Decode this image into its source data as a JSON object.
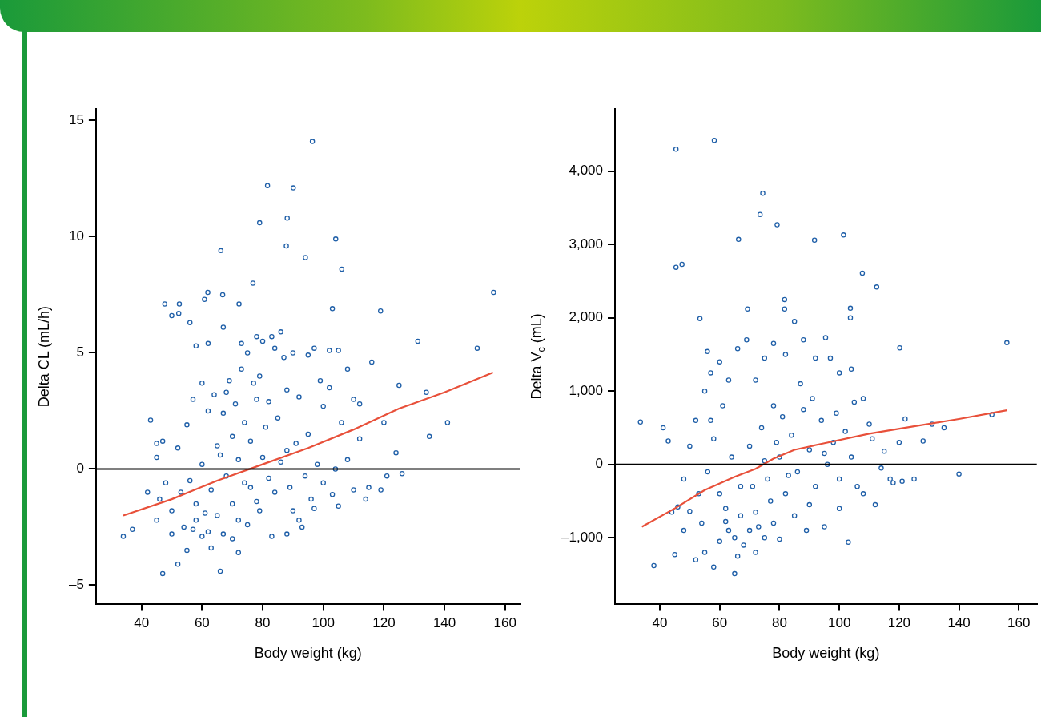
{
  "chart_data": [
    {
      "type": "scatter",
      "xlabel": "Body weight (kg)",
      "ylabel": "Delta CL (mL/h)",
      "xlim": [
        25,
        165
      ],
      "xticks": [
        40,
        60,
        80,
        100,
        120,
        140,
        160
      ],
      "ylim": [
        -5.8,
        15.5
      ],
      "yticks": [
        {
          "value": -5,
          "label": "–5"
        },
        0,
        5,
        10,
        15
      ],
      "legend": false,
      "grid": false,
      "ref_lines": [
        {
          "axis": "y",
          "value": 0,
          "color": "#000000"
        }
      ],
      "series": [
        {
          "marker": "circle",
          "color": "#1f5fa8",
          "x": [
            96.4,
            81.6,
            90.1,
            88.1,
            79,
            87.8,
            66.2,
            94.1,
            104.1,
            106.1,
            76.8,
            156.2,
            47.7,
            61.9,
            66.8,
            72.2,
            103,
            118.9,
            131.2,
            150.8,
            52.5,
            60.8,
            52.3,
            120,
            125,
            134,
            135,
            141,
            124,
            126,
            121,
            119,
            115,
            114,
            110,
            103,
            105,
            112,
            116,
            108,
            102,
            105,
            95,
            97,
            90,
            87,
            86,
            83,
            84,
            78,
            80,
            75,
            73,
            67,
            62,
            58,
            56,
            50,
            34,
            37,
            43,
            45,
            47,
            46,
            45,
            47,
            50,
            52,
            55,
            57,
            60,
            62,
            63,
            66,
            67,
            70,
            72,
            75,
            78,
            83,
            88,
            93,
            96,
            100,
            52,
            55,
            57,
            60,
            62,
            65,
            68,
            70,
            72,
            74,
            76,
            78,
            80,
            82,
            85,
            88,
            90,
            92,
            95,
            98,
            100,
            102,
            106,
            108,
            110,
            112,
            56,
            58,
            60,
            63,
            65,
            66,
            68,
            70,
            72,
            74,
            76,
            79,
            81,
            84,
            86,
            89,
            91,
            94,
            97,
            48,
            50,
            53,
            54,
            58,
            61,
            64,
            67,
            69,
            71,
            73,
            77,
            79,
            82,
            88,
            92,
            99,
            104,
            45,
            42
          ],
          "values": [
            14.1,
            12.2,
            12.1,
            10.8,
            10.6,
            9.6,
            9.4,
            9.1,
            9.9,
            8.6,
            8.0,
            7.6,
            7.1,
            7.6,
            7.5,
            7.1,
            6.9,
            6.8,
            5.5,
            5.2,
            7.1,
            7.3,
            6.7,
            2.0,
            3.6,
            3.3,
            1.4,
            2.0,
            0.7,
            -0.2,
            -0.3,
            -0.9,
            -0.8,
            -1.3,
            -0.9,
            -1.1,
            -1.6,
            2.8,
            4.6,
            4.3,
            5.1,
            5.1,
            4.9,
            5.2,
            5.0,
            4.8,
            5.9,
            5.7,
            5.2,
            5.7,
            5.5,
            5.0,
            5.4,
            6.1,
            5.4,
            5.3,
            6.3,
            6.6,
            -2.9,
            -2.6,
            2.1,
            1.1,
            1.2,
            -1.3,
            -2.2,
            -4.5,
            -2.8,
            -4.1,
            -3.5,
            -2.6,
            -2.9,
            -2.7,
            -3.4,
            -4.4,
            -2.8,
            -3.0,
            -3.6,
            -2.4,
            -1.4,
            -2.9,
            -2.8,
            -2.5,
            -1.3,
            -0.6,
            0.9,
            1.9,
            3.0,
            3.7,
            2.5,
            1.0,
            3.3,
            -1.5,
            0.4,
            2.0,
            -0.8,
            3.0,
            0.5,
            -0.4,
            2.2,
            0.8,
            -1.8,
            3.1,
            1.5,
            0.2,
            2.7,
            3.5,
            2.0,
            0.4,
            3.0,
            1.3,
            -0.5,
            -1.5,
            0.2,
            -0.9,
            -2.0,
            0.6,
            -0.3,
            1.4,
            -2.2,
            -0.6,
            1.2,
            -1.8,
            1.8,
            -1.0,
            0.3,
            -0.8,
            1.1,
            -0.3,
            -1.7,
            -0.6,
            -1.8,
            -1.0,
            -2.5,
            -2.2,
            -1.9,
            3.2,
            2.4,
            3.8,
            2.8,
            4.3,
            3.7,
            4.0,
            2.9,
            3.4,
            -2.2,
            3.8,
            0.0,
            0.5,
            -1.0
          ]
        },
        {
          "type": "line",
          "marker": "none",
          "color": "#e8503a",
          "x": [
            34,
            50,
            65,
            80,
            95,
            110,
            125,
            140,
            156
          ],
          "values": [
            -2.0,
            -1.3,
            -0.5,
            0.2,
            0.9,
            1.7,
            2.6,
            3.3,
            4.15
          ]
        }
      ]
    },
    {
      "type": "scatter",
      "xlabel": "Body weight (kg)",
      "ylabel": "Delta V$_{c}$ (mL)",
      "xlim": [
        25,
        166
      ],
      "xticks": [
        40,
        60,
        80,
        100,
        120,
        140,
        160
      ],
      "ylim": [
        -1900,
        4850
      ],
      "yticks": [
        {
          "value": -1000,
          "label": "–1,000"
        },
        0,
        {
          "value": 1000,
          "label": "1,000"
        },
        {
          "value": 2000,
          "label": "2,000"
        },
        {
          "value": 3000,
          "label": "3,000"
        },
        {
          "value": 4000,
          "label": "4,000"
        }
      ],
      "legend": false,
      "grid": false,
      "ref_lines": [
        {
          "axis": "y",
          "value": 0,
          "color": "#000000"
        }
      ],
      "series": [
        {
          "marker": "circle",
          "color": "#1f5fa8",
          "x": [
            45.4,
            58.2,
            74.4,
            73.5,
            79.2,
            66.3,
            101.4,
            91.7,
            112.5,
            107.7,
            45.4,
            47.4,
            103.7,
            103.7,
            53.4,
            69.3,
            81.7,
            81.7,
            156,
            120.2,
            95.4,
            55.9,
            33.5,
            41.1,
            42.8,
            38,
            45,
            48,
            50,
            52,
            55,
            58,
            60,
            62,
            65,
            66,
            68,
            70,
            72,
            75,
            78,
            80,
            85,
            90,
            95,
            100,
            103,
            108,
            112,
            117,
            121,
            125,
            140,
            131,
            135,
            151,
            122,
            128,
            115,
            110,
            105,
            100,
            97,
            92,
            88,
            85,
            82,
            78,
            75,
            72,
            69,
            66,
            63,
            60,
            57,
            55,
            52,
            50,
            48,
            46,
            44,
            53,
            56,
            58,
            62,
            64,
            67,
            70,
            72,
            74,
            76,
            78,
            80,
            82,
            84,
            86,
            88,
            90,
            92,
            94,
            96,
            98,
            100,
            102,
            104,
            106,
            108,
            111,
            114,
            118,
            120,
            60,
            63,
            67,
            71,
            73,
            77,
            79,
            83,
            87,
            91,
            95,
            99,
            104,
            57,
            54,
            61,
            65,
            75,
            81,
            89
          ],
          "values": [
            4300,
            4420,
            3700,
            3410,
            3270,
            3070,
            3130,
            3060,
            2420,
            2610,
            2690,
            2730,
            2130,
            2000,
            1990,
            2120,
            2250,
            2120,
            1660,
            1590,
            1730,
            1540,
            580,
            500,
            320,
            -1380,
            -1230,
            -900,
            -640,
            -1300,
            -1200,
            -1400,
            -1050,
            -780,
            -1490,
            -1250,
            -1100,
            -900,
            -1200,
            -1000,
            -800,
            -1020,
            -700,
            -550,
            -850,
            -600,
            -1060,
            -400,
            -550,
            -200,
            -230,
            -200,
            -130,
            550,
            500,
            680,
            620,
            320,
            180,
            550,
            850,
            1250,
            1450,
            1450,
            1700,
            1950,
            1500,
            1650,
            1450,
            1150,
            1700,
            1580,
            1150,
            1400,
            1250,
            1000,
            600,
            250,
            -200,
            -580,
            -650,
            -400,
            -100,
            350,
            -600,
            100,
            -300,
            250,
            -650,
            500,
            -200,
            800,
            100,
            -400,
            400,
            -100,
            750,
            200,
            -300,
            600,
            0,
            300,
            -200,
            450,
            100,
            -300,
            900,
            350,
            -50,
            -250,
            300,
            -400,
            -900,
            -700,
            -300,
            -850,
            -500,
            300,
            -150,
            1100,
            900,
            150,
            700,
            1300,
            600,
            -800,
            800,
            -1000,
            50,
            650,
            -900
          ]
        },
        {
          "type": "line",
          "marker": "none",
          "color": "#e8503a",
          "x": [
            34,
            45,
            55,
            65,
            72,
            78,
            85,
            95,
            110,
            125,
            140,
            156
          ],
          "values": [
            -850,
            -600,
            -350,
            -170,
            -60,
            80,
            200,
            290,
            420,
            520,
            620,
            740
          ]
        }
      ]
    }
  ]
}
